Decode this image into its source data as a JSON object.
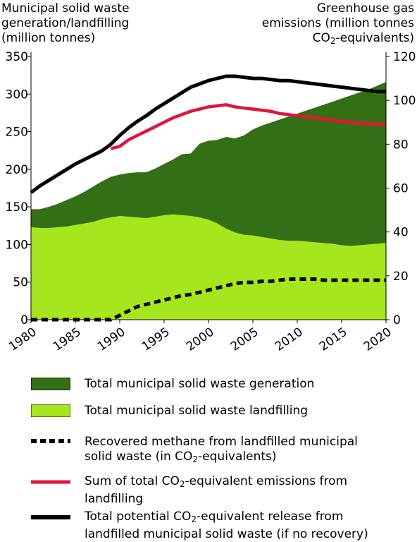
{
  "chart_data": {
    "type": "area",
    "title": "",
    "left_axis": {
      "title_lines": [
        "Municipal solid waste",
        "generation/landfilling",
        "(million tonnes)"
      ],
      "ylim": [
        0,
        350
      ],
      "ticks": [
        0,
        50,
        100,
        150,
        200,
        250,
        300,
        350
      ]
    },
    "right_axis": {
      "title_line1": "Greenhouse gas",
      "title_line2": "emissions (million tonnes",
      "title_line3_pre": "CO",
      "title_line3_sub": "2",
      "title_line3_post": "-equivalents)",
      "ylim": [
        0,
        120
      ],
      "ticks": [
        0,
        20,
        40,
        60,
        80,
        100,
        120
      ]
    },
    "x_axis": {
      "xlim": [
        1980,
        2020
      ],
      "ticks": [
        "1980",
        "1985",
        "1990",
        "1995",
        "2000",
        "2005",
        "2010",
        "2015",
        "2020"
      ]
    },
    "series": [
      {
        "key": "generation",
        "axis": "left",
        "kind": "area",
        "color": "#336f14",
        "x": [
          1980,
          1981,
          1982,
          1983,
          1984,
          1985,
          1986,
          1987,
          1988,
          1989,
          1990,
          1991,
          1992,
          1993,
          1994,
          1995,
          1996,
          1997,
          1998,
          1999,
          2000,
          2001,
          2002,
          2003,
          2004,
          2005,
          2006,
          2007,
          2008,
          2009,
          2010,
          2011,
          2012,
          2013,
          2014,
          2015,
          2016,
          2017,
          2018,
          2019,
          2020
        ],
        "values": [
          147,
          147,
          150,
          154,
          159,
          164,
          170,
          177,
          184,
          190,
          193,
          195,
          196,
          196,
          201,
          207,
          213,
          220,
          221,
          234,
          238,
          239,
          243,
          241,
          245,
          253,
          258,
          262,
          266,
          270,
          274,
          278,
          282,
          286,
          290,
          294,
          298,
          302,
          306,
          311,
          316
        ]
      },
      {
        "key": "landfilling",
        "axis": "left",
        "kind": "area",
        "color": "#a6e61c",
        "x": [
          1980,
          1981,
          1982,
          1983,
          1984,
          1985,
          1986,
          1987,
          1988,
          1989,
          1990,
          1991,
          1992,
          1993,
          1994,
          1995,
          1996,
          1997,
          1998,
          1999,
          2000,
          2001,
          2002,
          2003,
          2004,
          2005,
          2006,
          2007,
          2008,
          2009,
          2010,
          2011,
          2012,
          2013,
          2014,
          2015,
          2016,
          2017,
          2018,
          2019,
          2020
        ],
        "values": [
          123,
          122,
          122,
          123,
          124,
          126,
          128,
          130,
          134,
          136,
          138,
          137,
          136,
          135,
          137,
          139,
          140,
          139,
          138,
          136,
          133,
          128,
          121,
          116,
          113,
          112,
          110,
          108,
          106,
          105,
          105,
          104,
          103,
          102,
          101,
          99,
          98,
          99,
          100,
          101,
          102
        ]
      },
      {
        "key": "recovered",
        "axis": "right",
        "kind": "dashed",
        "color": "#000000",
        "x": [
          1980,
          1985,
          1989,
          1990,
          1991,
          1992,
          1993,
          1994,
          1995,
          1996,
          1997,
          1998,
          1999,
          2000,
          2001,
          2002,
          2003,
          2004,
          2005,
          2006,
          2007,
          2008,
          2009,
          2010,
          2011,
          2012,
          2013,
          2014,
          2015,
          2016,
          2017,
          2018,
          2019,
          2020
        ],
        "values": [
          0,
          0,
          0,
          2,
          4,
          6,
          7,
          8,
          9,
          10,
          11,
          11.5,
          12.5,
          13.5,
          14.5,
          15.5,
          16.5,
          17,
          17,
          17.5,
          17.5,
          18,
          18.5,
          18.5,
          18.5,
          18.5,
          18,
          18,
          18,
          18,
          18,
          18,
          18,
          18
        ]
      },
      {
        "key": "sum",
        "axis": "right",
        "kind": "line",
        "color": "#e0153b",
        "x": [
          1989,
          1990,
          1991,
          1992,
          1993,
          1994,
          1995,
          1996,
          1997,
          1998,
          1999,
          2000,
          2001,
          2002,
          2003,
          2004,
          2005,
          2006,
          2007,
          2008,
          2009,
          2010,
          2011,
          2012,
          2013,
          2014,
          2015,
          2016,
          2017,
          2018,
          2019,
          2020
        ],
        "values": [
          78,
          79,
          82,
          84,
          86,
          88,
          90,
          92,
          93.5,
          95,
          96,
          97,
          97.5,
          98,
          97,
          96.5,
          96,
          95.5,
          95,
          94,
          93.5,
          93,
          92.5,
          92,
          91.5,
          91,
          90.5,
          90,
          89.5,
          89.5,
          89,
          89
        ]
      },
      {
        "key": "potential",
        "axis": "right",
        "kind": "line",
        "color": "#000000",
        "x": [
          1980,
          1981,
          1982,
          1983,
          1984,
          1985,
          1986,
          1987,
          1988,
          1989,
          1990,
          1991,
          1992,
          1993,
          1994,
          1995,
          1996,
          1997,
          1998,
          1999,
          2000,
          2001,
          2002,
          2003,
          2004,
          2005,
          2006,
          2007,
          2008,
          2009,
          2010,
          2011,
          2012,
          2013,
          2014,
          2015,
          2016,
          2017,
          2018,
          2019,
          2020
        ],
        "values": [
          58,
          61,
          63.5,
          66,
          68.5,
          71,
          73,
          75,
          77,
          80,
          84,
          87.5,
          90.5,
          93,
          96,
          98.5,
          101,
          103.5,
          106,
          107.5,
          109,
          110,
          111,
          111,
          110.5,
          110,
          110,
          109.5,
          109,
          109,
          108.5,
          108,
          107.5,
          107,
          106.5,
          106,
          105.5,
          105,
          104.5,
          104,
          104
        ]
      }
    ],
    "legend": [
      {
        "key": "generation",
        "label": "Total municipal solid waste generation"
      },
      {
        "key": "landfilling",
        "label": "Total municipal solid waste landfilling"
      },
      {
        "key": "recovered",
        "label_line1": "Recovered methane from landfilled municipal",
        "label_line2_pre": "solid waste (in CO",
        "label_line2_sub": "2",
        "label_line2_post": "-equivalents)"
      },
      {
        "key": "sum",
        "label_line1_pre": "Sum of total CO",
        "label_line1_sub": "2",
        "label_line1_post": "-equivalent emissions from",
        "label_line2": "landfilling"
      },
      {
        "key": "potential",
        "label_line1_pre": "Total potential CO",
        "label_line1_sub": "2",
        "label_line1_post": "-equivalent release from",
        "label_line2": "landfilled municipal solid waste (if no recovery)"
      }
    ]
  }
}
